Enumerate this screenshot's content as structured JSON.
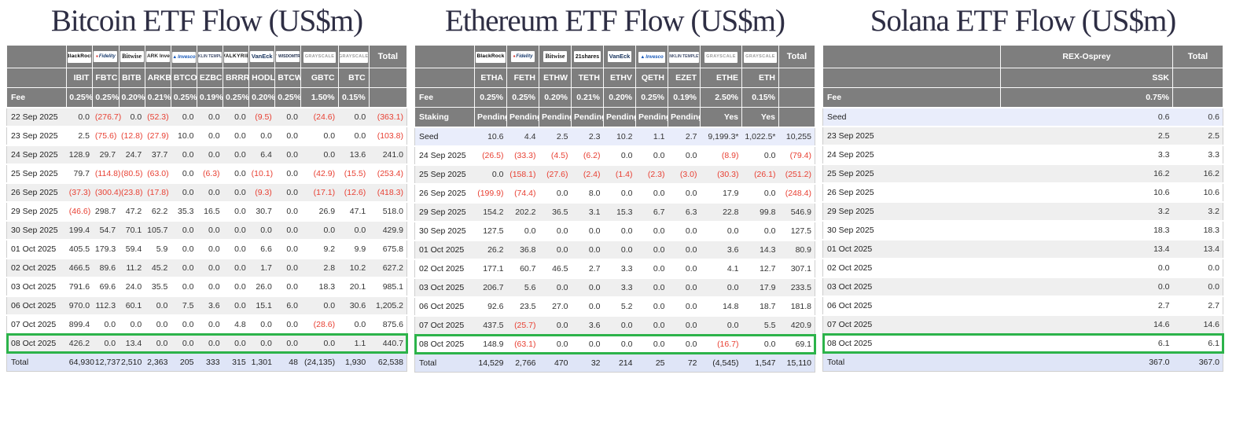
{
  "colors": {
    "header_bg": "#7e7e7e",
    "negative_value": "#e84033",
    "highlight_border": "#2cb34a",
    "total_row_bg": "#dfe5f7",
    "seed_row_bg": "#e9edfb",
    "alt_row_bg": "#efefef",
    "title_text": "#2e2e44"
  },
  "chart_data": [
    {
      "type": "table",
      "title": "Bitcoin ETF Flow (US$m)",
      "total_label": "Total",
      "fee_label": "Fee",
      "providers": [
        "BlackRock",
        "Fidelity",
        "Bitwise",
        "ARK Invest",
        "Invesco",
        "Franklin Templeton",
        "Valkyrie",
        "VanEck",
        "WisdomTree",
        "Grayscale",
        "Grayscale"
      ],
      "tickers": [
        "IBIT",
        "FBTC",
        "BITB",
        "ARKB",
        "BTCO",
        "EZBC",
        "BRRR",
        "HODL",
        "BTCW",
        "GBTC",
        "BTC"
      ],
      "fees": [
        "0.25%",
        "0.25%",
        "0.20%",
        "0.21%",
        "0.25%",
        "0.19%",
        "0.25%",
        "0.20%",
        "0.25%",
        "1.50%",
        "0.15%"
      ],
      "rows": [
        {
          "label": "22 Sep 2025",
          "values": [
            "0.0",
            "(276.7)",
            "0.0",
            "(52.3)",
            "0.0",
            "0.0",
            "0.0",
            "(9.5)",
            "0.0",
            "(24.6)",
            "0.0"
          ],
          "total": "(363.1)"
        },
        {
          "label": "23 Sep 2025",
          "values": [
            "2.5",
            "(75.6)",
            "(12.8)",
            "(27.9)",
            "10.0",
            "0.0",
            "0.0",
            "0.0",
            "0.0",
            "0.0",
            "0.0"
          ],
          "total": "(103.8)"
        },
        {
          "label": "24 Sep 2025",
          "values": [
            "128.9",
            "29.7",
            "24.7",
            "37.7",
            "0.0",
            "0.0",
            "0.0",
            "6.4",
            "0.0",
            "0.0",
            "13.6"
          ],
          "total": "241.0"
        },
        {
          "label": "25 Sep 2025",
          "values": [
            "79.7",
            "(114.8)",
            "(80.5)",
            "(63.0)",
            "0.0",
            "(6.3)",
            "0.0",
            "(10.1)",
            "0.0",
            "(42.9)",
            "(15.5)"
          ],
          "total": "(253.4)"
        },
        {
          "label": "26 Sep 2025",
          "values": [
            "(37.3)",
            "(300.4)",
            "(23.8)",
            "(17.8)",
            "0.0",
            "0.0",
            "0.0",
            "(9.3)",
            "0.0",
            "(17.1)",
            "(12.6)"
          ],
          "total": "(418.3)"
        },
        {
          "label": "29 Sep 2025",
          "values": [
            "(46.6)",
            "298.7",
            "47.2",
            "62.2",
            "35.3",
            "16.5",
            "0.0",
            "30.7",
            "0.0",
            "26.9",
            "47.1"
          ],
          "total": "518.0"
        },
        {
          "label": "30 Sep 2025",
          "values": [
            "199.4",
            "54.7",
            "70.1",
            "105.7",
            "0.0",
            "0.0",
            "0.0",
            "0.0",
            "0.0",
            "0.0",
            "0.0"
          ],
          "total": "429.9"
        },
        {
          "label": "01 Oct 2025",
          "values": [
            "405.5",
            "179.3",
            "59.4",
            "5.9",
            "0.0",
            "0.0",
            "0.0",
            "6.6",
            "0.0",
            "9.2",
            "9.9"
          ],
          "total": "675.8"
        },
        {
          "label": "02 Oct 2025",
          "values": [
            "466.5",
            "89.6",
            "11.2",
            "45.2",
            "0.0",
            "0.0",
            "0.0",
            "1.7",
            "0.0",
            "2.8",
            "10.2"
          ],
          "total": "627.2"
        },
        {
          "label": "03 Oct 2025",
          "values": [
            "791.6",
            "69.6",
            "24.0",
            "35.5",
            "0.0",
            "0.0",
            "0.0",
            "26.0",
            "0.0",
            "18.3",
            "20.1"
          ],
          "total": "985.1"
        },
        {
          "label": "06 Oct 2025",
          "values": [
            "970.0",
            "112.3",
            "60.1",
            "0.0",
            "7.5",
            "3.6",
            "0.0",
            "15.1",
            "6.0",
            "0.0",
            "30.6"
          ],
          "total": "1,205.2"
        },
        {
          "label": "07 Oct 2025",
          "values": [
            "899.4",
            "0.0",
            "0.0",
            "0.0",
            "0.0",
            "0.0",
            "4.8",
            "0.0",
            "0.0",
            "(28.6)",
            "0.0"
          ],
          "total": "875.6"
        },
        {
          "label": "08 Oct 2025",
          "values": [
            "426.2",
            "0.0",
            "13.4",
            "0.0",
            "0.0",
            "0.0",
            "0.0",
            "0.0",
            "0.0",
            "0.0",
            "1.1"
          ],
          "total": "440.7",
          "highlight": true
        }
      ],
      "total_row": {
        "label": "Total",
        "values": [
          "64,930",
          "12,737",
          "2,510",
          "2,363",
          "205",
          "333",
          "315",
          "1,301",
          "48",
          "(24,135)",
          "1,930"
        ],
        "total": "62,538"
      }
    },
    {
      "type": "table",
      "title": "Ethereum ETF Flow (US$m)",
      "total_label": "Total",
      "fee_label": "Fee",
      "staking_label": "Staking",
      "providers": [
        "BlackRock",
        "Fidelity",
        "Bitwise",
        "21shares",
        "VanEck",
        "Invesco",
        "Franklin Templeton",
        "Grayscale",
        "Grayscale"
      ],
      "tickers": [
        "ETHA",
        "FETH",
        "ETHW",
        "TETH",
        "ETHV",
        "QETH",
        "EZET",
        "ETHE",
        "ETH"
      ],
      "fees": [
        "0.25%",
        "0.25%",
        "0.20%",
        "0.21%",
        "0.20%",
        "0.25%",
        "0.19%",
        "2.50%",
        "0.15%"
      ],
      "staking": [
        "Pending",
        "Pending",
        "Pending",
        "Pending",
        "Pending",
        "Pending",
        "Pending",
        "Yes",
        "Yes"
      ],
      "rows": [
        {
          "label": "Seed",
          "values": [
            "10.6",
            "4.4",
            "2.5",
            "2.3",
            "10.2",
            "1.1",
            "2.7",
            "9,199.3*",
            "1,022.5*"
          ],
          "total": "10,255",
          "seed": true
        },
        {
          "label": "24 Sep 2025",
          "values": [
            "(26.5)",
            "(33.3)",
            "(4.5)",
            "(6.2)",
            "0.0",
            "0.0",
            "0.0",
            "(8.9)",
            "0.0"
          ],
          "total": "(79.4)"
        },
        {
          "label": "25 Sep 2025",
          "values": [
            "0.0",
            "(158.1)",
            "(27.6)",
            "(2.4)",
            "(1.4)",
            "(2.3)",
            "(3.0)",
            "(30.3)",
            "(26.1)"
          ],
          "total": "(251.2)"
        },
        {
          "label": "26 Sep 2025",
          "values": [
            "(199.9)",
            "(74.4)",
            "0.0",
            "8.0",
            "0.0",
            "0.0",
            "0.0",
            "17.9",
            "0.0"
          ],
          "total": "(248.4)"
        },
        {
          "label": "29 Sep 2025",
          "values": [
            "154.2",
            "202.2",
            "36.5",
            "3.1",
            "15.3",
            "6.7",
            "6.3",
            "22.8",
            "99.8"
          ],
          "total": "546.9"
        },
        {
          "label": "30 Sep 2025",
          "values": [
            "127.5",
            "0.0",
            "0.0",
            "0.0",
            "0.0",
            "0.0",
            "0.0",
            "0.0",
            "0.0"
          ],
          "total": "127.5"
        },
        {
          "label": "01 Oct 2025",
          "values": [
            "26.2",
            "36.8",
            "0.0",
            "0.0",
            "0.0",
            "0.0",
            "0.0",
            "3.6",
            "14.3"
          ],
          "total": "80.9"
        },
        {
          "label": "02 Oct 2025",
          "values": [
            "177.1",
            "60.7",
            "46.5",
            "2.7",
            "3.3",
            "0.0",
            "0.0",
            "4.1",
            "12.7"
          ],
          "total": "307.1"
        },
        {
          "label": "03 Oct 2025",
          "values": [
            "206.7",
            "5.6",
            "0.0",
            "0.0",
            "3.3",
            "0.0",
            "0.0",
            "0.0",
            "17.9"
          ],
          "total": "233.5"
        },
        {
          "label": "06 Oct 2025",
          "values": [
            "92.6",
            "23.5",
            "27.0",
            "0.0",
            "5.2",
            "0.0",
            "0.0",
            "14.8",
            "18.7"
          ],
          "total": "181.8"
        },
        {
          "label": "07 Oct 2025",
          "values": [
            "437.5",
            "(25.7)",
            "0.0",
            "3.6",
            "0.0",
            "0.0",
            "0.0",
            "0.0",
            "5.5"
          ],
          "total": "420.9"
        },
        {
          "label": "08 Oct 2025",
          "values": [
            "148.9",
            "(63.1)",
            "0.0",
            "0.0",
            "0.0",
            "0.0",
            "0.0",
            "(16.7)",
            "0.0"
          ],
          "total": "69.1",
          "highlight": true
        }
      ],
      "total_row": {
        "label": "Total",
        "values": [
          "14,529",
          "2,766",
          "470",
          "32",
          "214",
          "25",
          "72",
          "(4,545)",
          "1,547"
        ],
        "total": "15,110"
      }
    },
    {
      "type": "table",
      "title": "Solana ETF Flow (US$m)",
      "total_label": "Total",
      "fee_label": "Fee",
      "providers": [
        "REX-Osprey"
      ],
      "tickers": [
        "SSK"
      ],
      "fees": [
        "0.75%"
      ],
      "rows": [
        {
          "label": "Seed",
          "values": [
            "0.6"
          ],
          "total": "0.6",
          "seed": true
        },
        {
          "label": "23 Sep 2025",
          "values": [
            "2.5"
          ],
          "total": "2.5"
        },
        {
          "label": "24 Sep 2025",
          "values": [
            "3.3"
          ],
          "total": "3.3"
        },
        {
          "label": "25 Sep 2025",
          "values": [
            "16.2"
          ],
          "total": "16.2"
        },
        {
          "label": "26 Sep 2025",
          "values": [
            "10.6"
          ],
          "total": "10.6"
        },
        {
          "label": "29 Sep 2025",
          "values": [
            "3.2"
          ],
          "total": "3.2"
        },
        {
          "label": "30 Sep 2025",
          "values": [
            "18.3"
          ],
          "total": "18.3"
        },
        {
          "label": "01 Oct 2025",
          "values": [
            "13.4"
          ],
          "total": "13.4"
        },
        {
          "label": "02 Oct 2025",
          "values": [
            "0.0"
          ],
          "total": "0.0"
        },
        {
          "label": "03 Oct 2025",
          "values": [
            "0.0"
          ],
          "total": "0.0"
        },
        {
          "label": "06 Oct 2025",
          "values": [
            "2.7"
          ],
          "total": "2.7"
        },
        {
          "label": "07 Oct 2025",
          "values": [
            "14.6"
          ],
          "total": "14.6"
        },
        {
          "label": "08 Oct 2025",
          "values": [
            "6.1"
          ],
          "total": "6.1",
          "highlight": true
        }
      ],
      "total_row": {
        "label": "Total",
        "values": [
          "367.0"
        ],
        "total": "367.0"
      }
    }
  ]
}
